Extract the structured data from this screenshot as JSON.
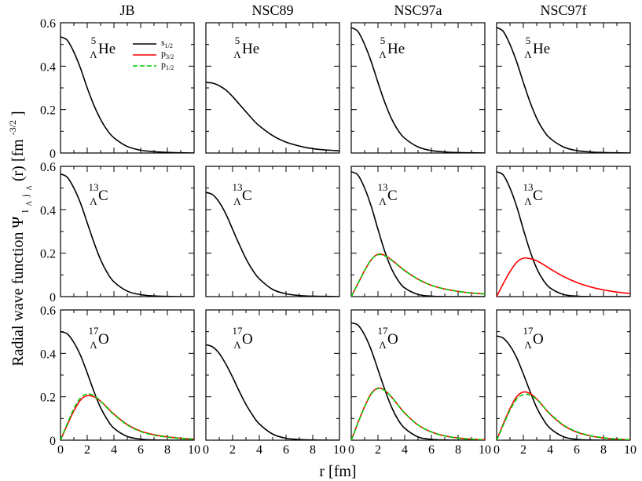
{
  "figure": {
    "ylabel_main": "Radial wave function Ψ",
    "ylabel_sub": "l",
    "ylabel_subsub_a": "Λ",
    "ylabel_subsub_b": "j",
    "ylabel_subsub_c": "Λ",
    "ylabel_rest": "(r) [fm",
    "ylabel_exp": "-3/2",
    "ylabel_close": "]",
    "xlabel": "r [fm]"
  },
  "legend": {
    "entries": [
      {
        "label": "s",
        "sub": "1/2",
        "color": "#000000",
        "dash": false
      },
      {
        "label": "p",
        "sub": "3/2",
        "color": "#ff0000",
        "dash": false
      },
      {
        "label": "p",
        "sub": "1/2",
        "color": "#00cc00",
        "dash": true
      }
    ]
  },
  "chart_data": {
    "type": "line",
    "columns": [
      "JB",
      "NSC89",
      "NSC97a",
      "NSC97f"
    ],
    "rows": [
      {
        "nucleus": "He",
        "mass": "5",
        "lambda": "Λ"
      },
      {
        "nucleus": "C",
        "mass": "13",
        "lambda": "Λ"
      },
      {
        "nucleus": "O",
        "mass": "17",
        "lambda": "Λ"
      }
    ],
    "xlim": [
      0,
      10
    ],
    "ylim": [
      0,
      0.6
    ],
    "xticks": [
      "0",
      "2",
      "4",
      "6",
      "8",
      "10"
    ],
    "yticks": [
      "0",
      "0.2",
      "0.4",
      "0.6"
    ],
    "xlabel": "r [fm]",
    "ylabel": "Radial wave function Ψ_{l_Λ j_Λ}(r) [fm^-3/2]",
    "r": [
      0,
      0.5,
      1,
      1.5,
      2,
      2.5,
      3,
      3.5,
      4,
      5,
      6,
      7,
      8,
      9,
      10
    ],
    "panels": [
      {
        "row": 0,
        "col": 0,
        "series": [
          {
            "name": "s1/2",
            "values": [
              0.535,
              0.52,
              0.465,
              0.39,
              0.3,
              0.22,
              0.155,
              0.105,
              0.07,
              0.03,
              0.013,
              0.006,
              0.003,
              0.001,
              0.0
            ]
          }
        ]
      },
      {
        "row": 0,
        "col": 1,
        "series": [
          {
            "name": "s1/2",
            "values": [
              0.325,
              0.322,
              0.31,
              0.29,
              0.26,
              0.225,
              0.19,
              0.155,
              0.125,
              0.08,
              0.05,
              0.032,
              0.02,
              0.014,
              0.01
            ]
          }
        ]
      },
      {
        "row": 0,
        "col": 2,
        "series": [
          {
            "name": "s1/2",
            "values": [
              0.578,
              0.56,
              0.5,
              0.42,
              0.325,
              0.235,
              0.16,
              0.105,
              0.068,
              0.028,
              0.011,
              0.005,
              0.002,
              0.001,
              0.0
            ]
          }
        ]
      },
      {
        "row": 0,
        "col": 3,
        "series": [
          {
            "name": "s1/2",
            "values": [
              0.578,
              0.56,
              0.5,
              0.42,
              0.325,
              0.235,
              0.16,
              0.105,
              0.068,
              0.028,
              0.011,
              0.005,
              0.002,
              0.001,
              0.0
            ]
          }
        ]
      },
      {
        "row": 1,
        "col": 0,
        "series": [
          {
            "name": "s1/2",
            "values": [
              0.565,
              0.55,
              0.5,
              0.43,
              0.34,
              0.25,
              0.17,
              0.11,
              0.068,
              0.025,
              0.009,
              0.003,
              0.001,
              0.0,
              0.0
            ]
          }
        ]
      },
      {
        "row": 1,
        "col": 1,
        "series": [
          {
            "name": "s1/2",
            "values": [
              0.48,
              0.47,
              0.435,
              0.38,
              0.31,
              0.24,
              0.175,
              0.122,
              0.082,
              0.033,
              0.013,
              0.005,
              0.002,
              0.001,
              0.0
            ]
          }
        ]
      },
      {
        "row": 1,
        "col": 2,
        "series": [
          {
            "name": "s1/2",
            "values": [
              0.575,
              0.56,
              0.5,
              0.415,
              0.31,
              0.21,
              0.13,
              0.075,
              0.04,
              0.01,
              0.002,
              0.0,
              0.0,
              0.0,
              0.0
            ]
          },
          {
            "name": "p3/2",
            "values": [
              0.0,
              0.06,
              0.12,
              0.17,
              0.195,
              0.19,
              0.17,
              0.145,
              0.12,
              0.08,
              0.052,
              0.035,
              0.024,
              0.017,
              0.012
            ]
          },
          {
            "name": "p1/2",
            "values": [
              0.0,
              0.06,
              0.12,
              0.17,
              0.193,
              0.188,
              0.168,
              0.144,
              0.12,
              0.08,
              0.052,
              0.035,
              0.024,
              0.017,
              0.012
            ]
          }
        ]
      },
      {
        "row": 1,
        "col": 3,
        "series": [
          {
            "name": "s1/2",
            "values": [
              0.575,
              0.56,
              0.5,
              0.415,
              0.31,
              0.21,
              0.13,
              0.075,
              0.04,
              0.01,
              0.002,
              0.0,
              0.0,
              0.0,
              0.0
            ]
          },
          {
            "name": "p3/2",
            "values": [
              0.0,
              0.06,
              0.115,
              0.158,
              0.177,
              0.175,
              0.165,
              0.148,
              0.128,
              0.093,
              0.065,
              0.045,
              0.031,
              0.021,
              0.014
            ]
          }
        ]
      },
      {
        "row": 2,
        "col": 0,
        "series": [
          {
            "name": "s1/2",
            "values": [
              0.5,
              0.49,
              0.45,
              0.39,
              0.31,
              0.225,
              0.15,
              0.095,
              0.055,
              0.017,
              0.005,
              0.001,
              0.0,
              0.0,
              0.0
            ]
          },
          {
            "name": "p3/2",
            "values": [
              0.0,
              0.07,
              0.135,
              0.185,
              0.205,
              0.2,
              0.18,
              0.15,
              0.12,
              0.072,
              0.042,
              0.025,
              0.015,
              0.009,
              0.005
            ]
          },
          {
            "name": "p1/2",
            "values": [
              0.0,
              0.075,
              0.145,
              0.195,
              0.213,
              0.205,
              0.18,
              0.148,
              0.118,
              0.07,
              0.04,
              0.023,
              0.014,
              0.008,
              0.005
            ]
          }
        ]
      },
      {
        "row": 2,
        "col": 1,
        "series": [
          {
            "name": "s1/2",
            "values": [
              0.44,
              0.43,
              0.4,
              0.35,
              0.29,
              0.225,
              0.165,
              0.115,
              0.075,
              0.028,
              0.009,
              0.003,
              0.001,
              0.0,
              0.0
            ]
          }
        ]
      },
      {
        "row": 2,
        "col": 2,
        "series": [
          {
            "name": "s1/2",
            "values": [
              0.54,
              0.53,
              0.485,
              0.415,
              0.325,
              0.235,
              0.155,
              0.095,
              0.055,
              0.015,
              0.004,
              0.001,
              0.0,
              0.0,
              0.0
            ]
          },
          {
            "name": "p3/2",
            "values": [
              0.0,
              0.08,
              0.155,
              0.215,
              0.24,
              0.23,
              0.2,
              0.162,
              0.125,
              0.07,
              0.038,
              0.02,
              0.01,
              0.005,
              0.002
            ]
          },
          {
            "name": "p1/2",
            "values": [
              0.0,
              0.079,
              0.153,
              0.213,
              0.238,
              0.229,
              0.2,
              0.162,
              0.125,
              0.07,
              0.038,
              0.02,
              0.01,
              0.005,
              0.002
            ]
          }
        ]
      },
      {
        "row": 2,
        "col": 3,
        "series": [
          {
            "name": "s1/2",
            "values": [
              0.48,
              0.47,
              0.435,
              0.38,
              0.305,
              0.225,
              0.15,
              0.095,
              0.055,
              0.016,
              0.004,
              0.001,
              0.0,
              0.0,
              0.0
            ]
          },
          {
            "name": "p3/2",
            "values": [
              0.0,
              0.075,
              0.145,
              0.2,
              0.222,
              0.215,
              0.19,
              0.155,
              0.12,
              0.068,
              0.037,
              0.02,
              0.01,
              0.005,
              0.002
            ]
          },
          {
            "name": "p1/2",
            "values": [
              0.0,
              0.07,
              0.138,
              0.19,
              0.21,
              0.208,
              0.188,
              0.155,
              0.122,
              0.07,
              0.039,
              0.021,
              0.011,
              0.005,
              0.002
            ]
          }
        ]
      }
    ]
  }
}
